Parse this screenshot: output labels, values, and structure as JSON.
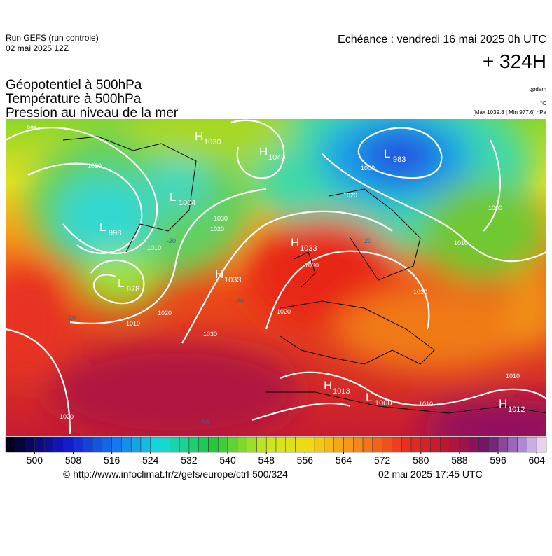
{
  "header": {
    "run": "Run GEFS (run controle)",
    "run_date": "02 mai 2025 12Z",
    "echeance": "Echéance : vendredi 16 mai 2025 0h UTC",
    "lead": "+ 324H",
    "titles": [
      "Géopotentiel à 500hPa",
      "Température à 500hPa",
      "Pression au niveau de la mer"
    ],
    "units": [
      "gpdam",
      "°C",
      "[Max 1039.8 | Min 977.6] hPa"
    ]
  },
  "centers": [
    {
      "letter": "H",
      "value": "1030"
    },
    {
      "letter": "H",
      "value": "1040"
    },
    {
      "letter": "L",
      "value": "983"
    },
    {
      "letter": "L",
      "value": "1004"
    },
    {
      "letter": "L",
      "value": "998"
    },
    {
      "letter": "L",
      "value": "978"
    },
    {
      "letter": "H",
      "value": "1033"
    },
    {
      "letter": "H",
      "value": "1033"
    },
    {
      "letter": "H",
      "value": "1013"
    },
    {
      "letter": "L",
      "value": "1000"
    },
    {
      "letter": "H",
      "value": "1012"
    }
  ],
  "isobar_labels": [
    "996",
    "1020",
    "1000",
    "1020",
    "1010",
    "1020",
    "1030",
    "1010",
    "1010",
    "1000",
    "1030",
    "1020",
    "1020",
    "1010",
    "1010",
    "1020",
    "1030",
    "1020"
  ],
  "temperature_labels": [
    "-20",
    "-20",
    "20",
    "-20",
    "-10"
  ],
  "colorbar": {
    "lim": [
      494,
      606
    ],
    "ticks": [
      500,
      508,
      516,
      524,
      532,
      540,
      548,
      556,
      564,
      572,
      580,
      588,
      596,
      604
    ]
  },
  "footer": {
    "url": "© http://www.infoclimat.fr/z/gefs/europe/ctrl-500/324",
    "timestamp": "02 mai 2025 17:45 UTC"
  }
}
